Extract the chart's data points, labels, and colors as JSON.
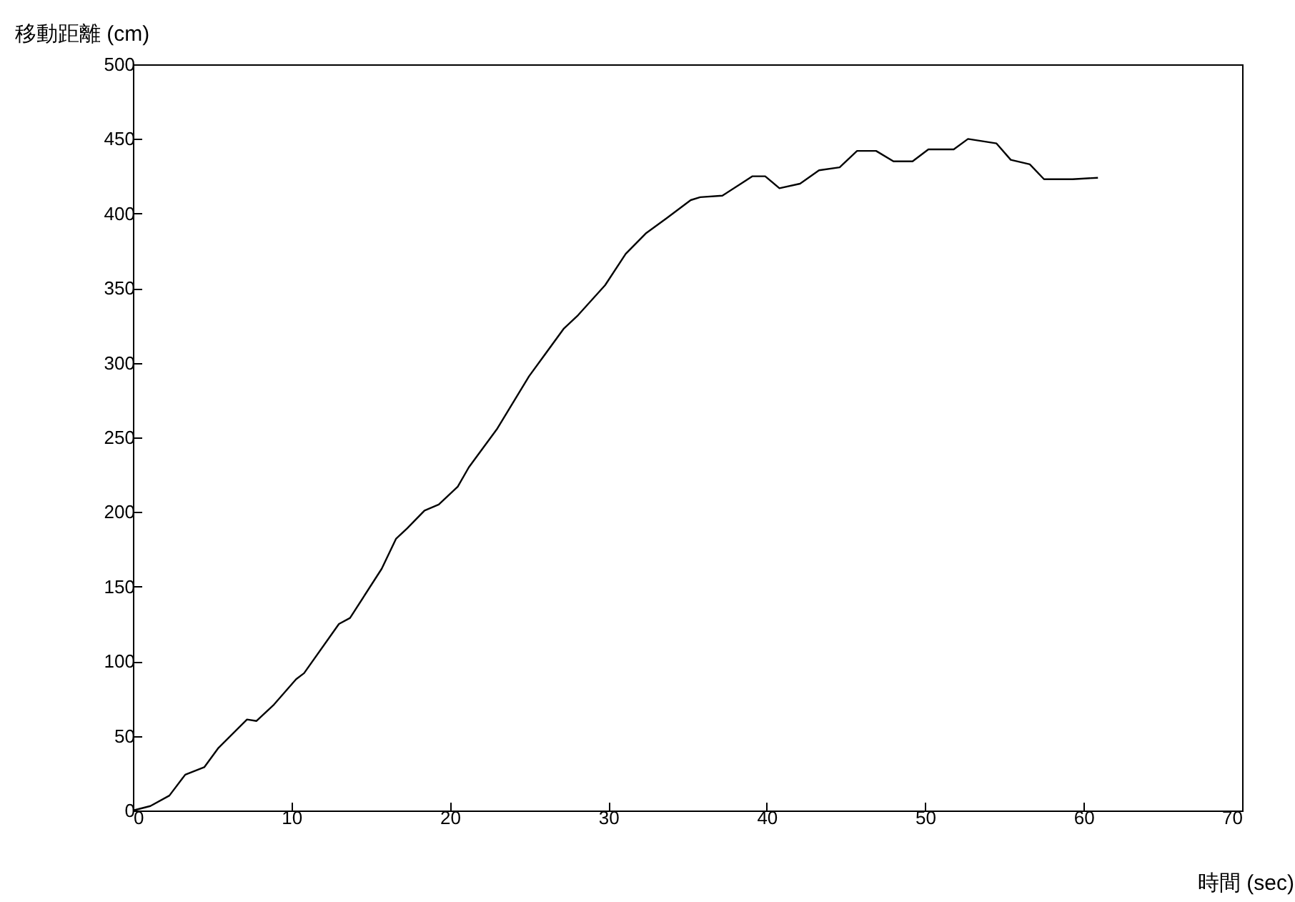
{
  "chart_data": {
    "type": "line",
    "xlabel": "時間 (sec)",
    "ylabel": "移動距離 (cm)",
    "xlim": [
      0,
      70
    ],
    "ylim": [
      0,
      500
    ],
    "xticks": [
      0,
      10,
      20,
      30,
      40,
      50,
      60,
      70
    ],
    "yticks": [
      0,
      50,
      100,
      150,
      200,
      250,
      300,
      350,
      400,
      450,
      500
    ],
    "grid": false,
    "marker": "none",
    "line_style": "solid",
    "series": [
      {
        "color": "#000000",
        "x": [
          0,
          1.1,
          2.3,
          3.3,
          4.5,
          5.4,
          7.2,
          7.8,
          8.9,
          10.3,
          10.8,
          13.0,
          13.7,
          15.7,
          16.6,
          17.3,
          18.4,
          19.3,
          20.5,
          21.2,
          23.0,
          25.0,
          27.2,
          28.1,
          29.8,
          31.1,
          32.4,
          33.7,
          35.2,
          35.8,
          37.2,
          39.1,
          39.9,
          40.8,
          42.1,
          43.3,
          44.6,
          45.7,
          46.9,
          48.0,
          49.2,
          50.2,
          51.8,
          52.7,
          54.5,
          55.4,
          56.6,
          57.5,
          59.3,
          60.9
        ],
        "values": [
          0,
          3,
          10,
          24,
          29,
          42,
          61,
          60,
          71,
          88,
          92,
          125,
          129,
          162,
          182,
          189,
          201,
          205,
          217,
          230,
          256,
          291,
          323,
          332,
          352,
          373,
          387,
          397,
          409,
          411,
          412,
          425,
          425,
          417,
          420,
          429,
          431,
          442,
          442,
          435,
          435,
          443,
          443,
          450,
          447,
          436,
          433,
          423,
          423,
          424
        ]
      }
    ]
  }
}
